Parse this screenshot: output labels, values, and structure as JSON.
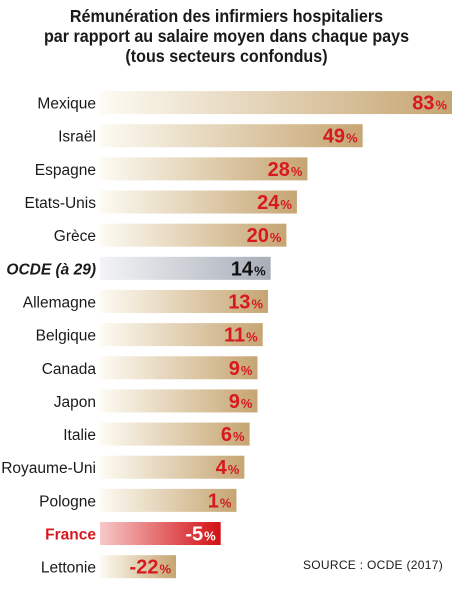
{
  "chart_data": {
    "type": "bar",
    "orientation": "horizontal",
    "title": [
      "Rémunération des infirmiers hospitaliers",
      "par rapport au salaire moyen dans chaque pays",
      "(tous secteurs confondus)"
    ],
    "categories": [
      "Mexique",
      "Israël",
      "Espagne",
      "Etats-Unis",
      "Grèce",
      "OCDE (à 29)",
      "Allemagne",
      "Belgique",
      "Canada",
      "Japon",
      "Italie",
      "Royaume-Uni",
      "Pologne",
      "France",
      "Lettonie"
    ],
    "values": [
      83,
      49,
      28,
      24,
      20,
      14,
      13,
      11,
      9,
      9,
      6,
      4,
      1,
      -5,
      -22
    ],
    "value_labels": [
      "83",
      "49",
      "28",
      "24",
      "20",
      "14",
      "13",
      "11",
      "9",
      "9",
      "6",
      "4",
      "1",
      "-5",
      "-22"
    ],
    "unit": "%",
    "highlight": {
      "OCDE (à 29)": "average",
      "France": "focus"
    },
    "colors": {
      "bar_gradient_start": "#fdfbf3",
      "bar_gradient_end": "#c6a572",
      "average_start": "#f3f4f6",
      "average_end": "#a8aeb8",
      "focus_start": "#f7c9c9",
      "focus_end": "#d20f14",
      "value_text": "#d71920",
      "average_value_text": "#111111",
      "focus_value_text": "#ffffff",
      "focus_label": "#d71920"
    },
    "xlabel": "",
    "ylabel": ""
  },
  "source": "SOURCE : OCDE (2017)"
}
